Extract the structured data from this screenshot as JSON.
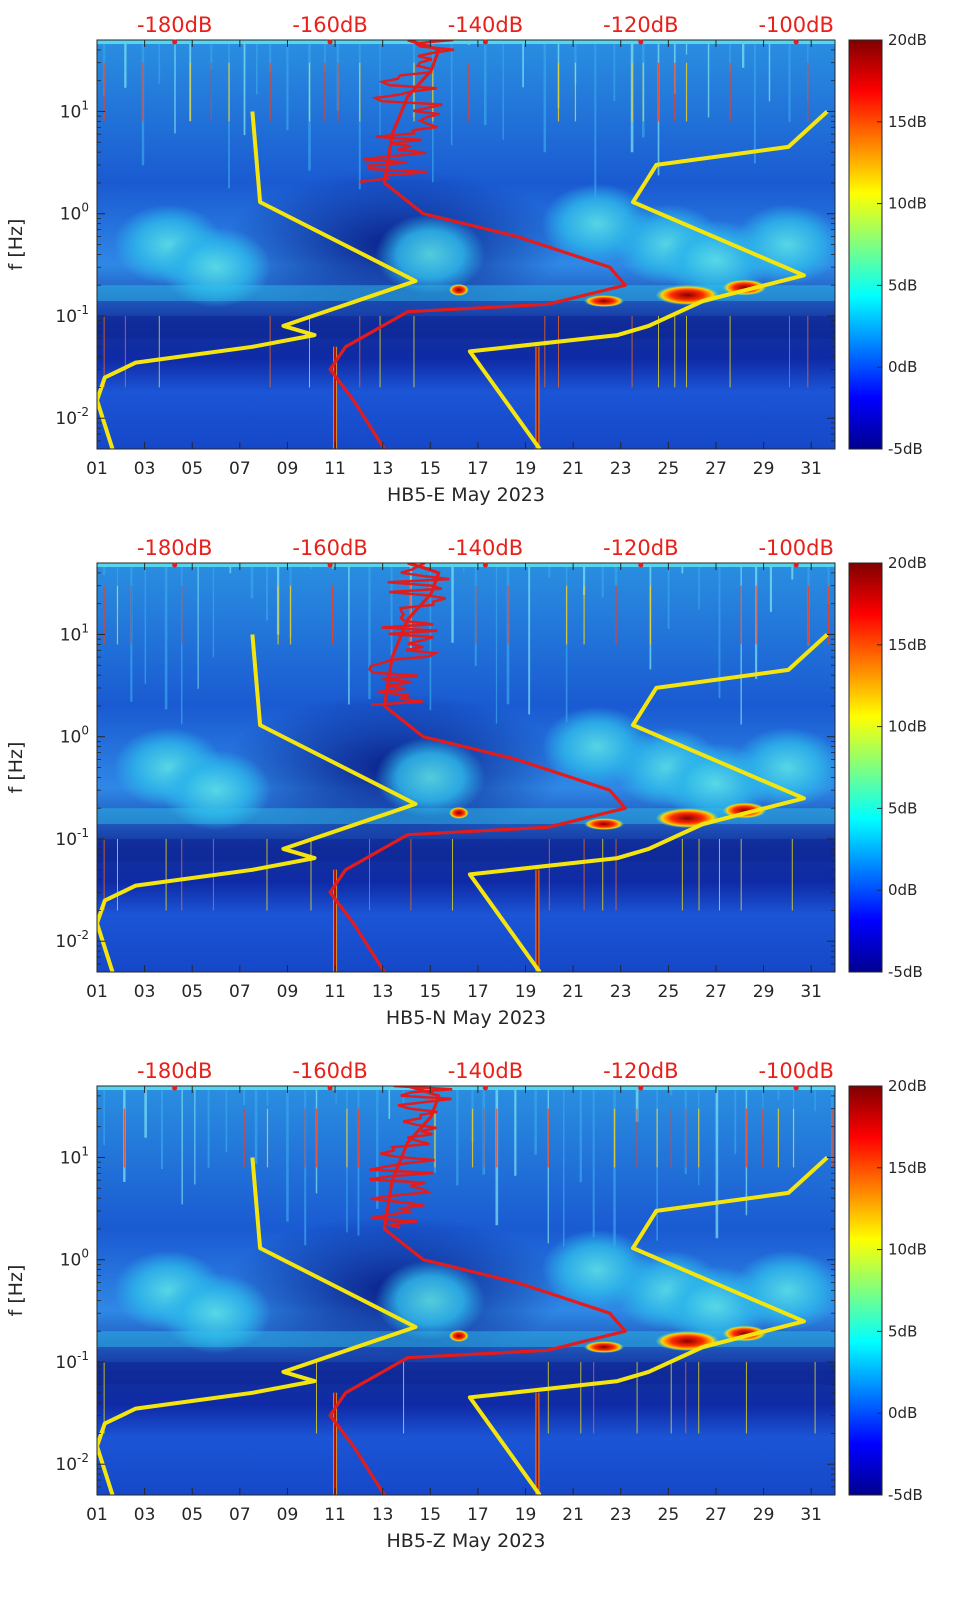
{
  "chart_data": [
    {
      "type": "heatmap",
      "xlabel": "HB5-E May 2023",
      "ylabel": "f [Hz]",
      "x_ticks": [
        "01",
        "03",
        "05",
        "07",
        "09",
        "11",
        "13",
        "15",
        "17",
        "19",
        "21",
        "23",
        "25",
        "27",
        "29",
        "31"
      ],
      "x_range_day": [
        1,
        32
      ],
      "y_scale": "log",
      "y_range_hz": [
        0.005,
        50
      ],
      "y_ticks": [
        {
          "value": 0.01,
          "base": "10",
          "exp": "-2"
        },
        {
          "value": 0.1,
          "base": "10",
          "exp": "-1"
        },
        {
          "value": 1,
          "base": "10",
          "exp": "0"
        },
        {
          "value": 10,
          "base": "10",
          "exp": "1"
        }
      ],
      "top_scale_labels": [
        "-180dB",
        "-160dB",
        "-140dB",
        "-120dB",
        "-100dB"
      ],
      "top_scale_db_range": [
        -190,
        -95
      ],
      "colorbar": {
        "colormap": "jet",
        "range_db": [
          -5,
          20
        ],
        "tick_labels": [
          "20dB",
          "15dB",
          "10dB",
          "5dB",
          "0dB",
          "-5dB"
        ]
      },
      "grid": false,
      "series": [
        {
          "color": "#f5e50f",
          "points_db_hz": [
            [
              -170,
              10
            ],
            [
              -169,
              1.3
            ],
            [
              -149,
              0.22
            ],
            [
              -166,
              0.08
            ],
            [
              -162,
              0.065
            ],
            [
              -170,
              0.05
            ],
            [
              -185,
              0.035
            ],
            [
              -189,
              0.025
            ],
            [
              -190,
              0.015
            ],
            [
              -188,
              0.005
            ]
          ]
        },
        {
          "color": "#f5e50f",
          "points_db_hz": [
            [
              -96,
              10
            ],
            [
              -101,
              4.5
            ],
            [
              -118,
              3
            ],
            [
              -121,
              1.3
            ],
            [
              -99,
              0.25
            ],
            [
              -112,
              0.14
            ],
            [
              -119,
              0.08
            ],
            [
              -123,
              0.065
            ],
            [
              -142,
              0.045
            ],
            [
              -133,
              0.005
            ]
          ]
        },
        {
          "color": "#e21c1c",
          "points_db_hz": [
            [
              -150,
              50
            ],
            [
              -148,
              45
            ],
            [
              -146,
              40
            ],
            [
              -147,
              25
            ],
            [
              -150,
              14
            ],
            [
              -152,
              6
            ],
            [
              -153,
              2
            ],
            [
              -148,
              1.0
            ],
            [
              -136,
              0.6
            ],
            [
              -124,
              0.3
            ],
            [
              -122,
              0.2
            ],
            [
              -132,
              0.13
            ],
            [
              -150,
              0.11
            ],
            [
              -158,
              0.05
            ],
            [
              -160,
              0.03
            ],
            [
              -157,
              0.015
            ],
            [
              -153,
              0.005
            ]
          ]
        }
      ]
    },
    {
      "type": "heatmap",
      "xlabel": "HB5-N May 2023",
      "ylabel": "f [Hz]",
      "x_ticks": [
        "01",
        "03",
        "05",
        "07",
        "09",
        "11",
        "13",
        "15",
        "17",
        "19",
        "21",
        "23",
        "25",
        "27",
        "29",
        "31"
      ],
      "x_range_day": [
        1,
        32
      ],
      "y_scale": "log",
      "y_range_hz": [
        0.005,
        50
      ],
      "y_ticks": [
        {
          "value": 0.01,
          "base": "10",
          "exp": "-2"
        },
        {
          "value": 0.1,
          "base": "10",
          "exp": "-1"
        },
        {
          "value": 1,
          "base": "10",
          "exp": "0"
        },
        {
          "value": 10,
          "base": "10",
          "exp": "1"
        }
      ],
      "top_scale_labels": [
        "-180dB",
        "-160dB",
        "-140dB",
        "-120dB",
        "-100dB"
      ],
      "top_scale_db_range": [
        -190,
        -95
      ],
      "colorbar": {
        "colormap": "jet",
        "range_db": [
          -5,
          20
        ],
        "tick_labels": [
          "20dB",
          "15dB",
          "10dB",
          "5dB",
          "0dB",
          "-5dB"
        ]
      },
      "grid": false,
      "series": [
        {
          "color": "#f5e50f",
          "points_db_hz": [
            [
              -170,
              10
            ],
            [
              -169,
              1.3
            ],
            [
              -149,
              0.22
            ],
            [
              -166,
              0.08
            ],
            [
              -162,
              0.065
            ],
            [
              -170,
              0.05
            ],
            [
              -185,
              0.035
            ],
            [
              -189,
              0.025
            ],
            [
              -190,
              0.015
            ],
            [
              -188,
              0.005
            ]
          ]
        },
        {
          "color": "#f5e50f",
          "points_db_hz": [
            [
              -96,
              10
            ],
            [
              -101,
              4.5
            ],
            [
              -118,
              3
            ],
            [
              -121,
              1.3
            ],
            [
              -99,
              0.25
            ],
            [
              -112,
              0.14
            ],
            [
              -119,
              0.08
            ],
            [
              -123,
              0.065
            ],
            [
              -142,
              0.045
            ],
            [
              -133,
              0.005
            ]
          ]
        },
        {
          "color": "#e21c1c",
          "points_db_hz": [
            [
              -150,
              50
            ],
            [
              -148,
              45
            ],
            [
              -146,
              40
            ],
            [
              -147,
              25
            ],
            [
              -150,
              14
            ],
            [
              -152,
              6
            ],
            [
              -153,
              2
            ],
            [
              -148,
              1.0
            ],
            [
              -136,
              0.6
            ],
            [
              -124,
              0.3
            ],
            [
              -122,
              0.2
            ],
            [
              -132,
              0.13
            ],
            [
              -150,
              0.11
            ],
            [
              -158,
              0.05
            ],
            [
              -160,
              0.03
            ],
            [
              -157,
              0.015
            ],
            [
              -153,
              0.005
            ]
          ]
        }
      ]
    },
    {
      "type": "heatmap",
      "xlabel": "HB5-Z May 2023",
      "ylabel": "f [Hz]",
      "x_ticks": [
        "01",
        "03",
        "05",
        "07",
        "09",
        "11",
        "13",
        "15",
        "17",
        "19",
        "21",
        "23",
        "25",
        "27",
        "29",
        "31"
      ],
      "x_range_day": [
        1,
        32
      ],
      "y_scale": "log",
      "y_range_hz": [
        0.005,
        50
      ],
      "y_ticks": [
        {
          "value": 0.01,
          "base": "10",
          "exp": "-2"
        },
        {
          "value": 0.1,
          "base": "10",
          "exp": "-1"
        },
        {
          "value": 1,
          "base": "10",
          "exp": "0"
        },
        {
          "value": 10,
          "base": "10",
          "exp": "1"
        }
      ],
      "top_scale_labels": [
        "-180dB",
        "-160dB",
        "-140dB",
        "-120dB",
        "-100dB"
      ],
      "top_scale_db_range": [
        -190,
        -95
      ],
      "colorbar": {
        "colormap": "jet",
        "range_db": [
          -5,
          20
        ],
        "tick_labels": [
          "20dB",
          "15dB",
          "10dB",
          "5dB",
          "0dB",
          "-5dB"
        ]
      },
      "grid": false,
      "series": [
        {
          "color": "#f5e50f",
          "points_db_hz": [
            [
              -170,
              10
            ],
            [
              -169,
              1.3
            ],
            [
              -149,
              0.22
            ],
            [
              -166,
              0.08
            ],
            [
              -162,
              0.065
            ],
            [
              -170,
              0.05
            ],
            [
              -185,
              0.035
            ],
            [
              -189,
              0.025
            ],
            [
              -190,
              0.015
            ],
            [
              -188,
              0.005
            ]
          ]
        },
        {
          "color": "#f5e50f",
          "points_db_hz": [
            [
              -96,
              10
            ],
            [
              -101,
              4.5
            ],
            [
              -118,
              3
            ],
            [
              -121,
              1.3
            ],
            [
              -99,
              0.25
            ],
            [
              -112,
              0.14
            ],
            [
              -119,
              0.08
            ],
            [
              -123,
              0.065
            ],
            [
              -142,
              0.045
            ],
            [
              -133,
              0.005
            ]
          ]
        },
        {
          "color": "#e21c1c",
          "points_db_hz": [
            [
              -150,
              50
            ],
            [
              -148,
              45
            ],
            [
              -146,
              40
            ],
            [
              -147,
              25
            ],
            [
              -150,
              14
            ],
            [
              -152,
              6
            ],
            [
              -153,
              2
            ],
            [
              -148,
              1.0
            ],
            [
              -136,
              0.6
            ],
            [
              -124,
              0.3
            ],
            [
              -122,
              0.2
            ],
            [
              -132,
              0.13
            ],
            [
              -150,
              0.11
            ],
            [
              -158,
              0.05
            ],
            [
              -160,
              0.03
            ],
            [
              -157,
              0.015
            ],
            [
              -153,
              0.005
            ]
          ]
        }
      ]
    }
  ]
}
